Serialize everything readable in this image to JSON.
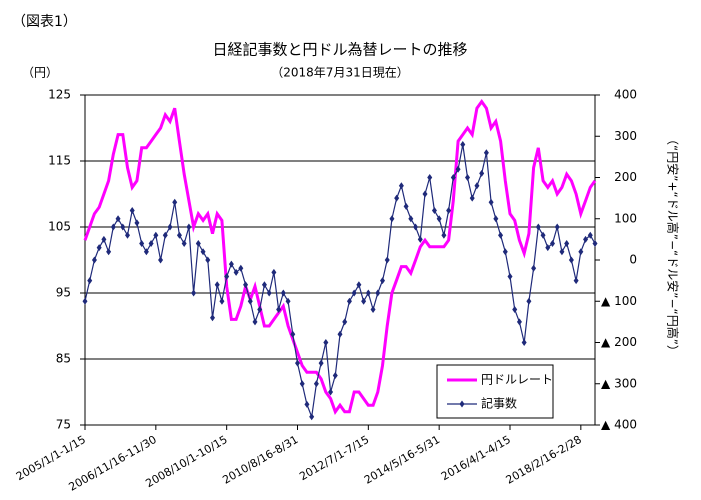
{
  "label": "（図表1）",
  "chart_data": {
    "type": "line",
    "title": "日経記事数と円ドル為替レートの推移",
    "subtitle": "（2018年7月31日現在）",
    "y_label": "（円）",
    "y2_label": "（“円安”+“ドル高”−“ドル安”−“円高”）",
    "categories": [
      "2005/1/1-1/15",
      null,
      null,
      null,
      null,
      null,
      null,
      null,
      null,
      null,
      null,
      null,
      null,
      null,
      null,
      "2006/11/16-11/30",
      null,
      null,
      null,
      null,
      null,
      null,
      null,
      null,
      null,
      null,
      null,
      null,
      null,
      null,
      "2008/10/1-10/15",
      null,
      null,
      null,
      null,
      null,
      null,
      null,
      null,
      null,
      null,
      null,
      null,
      null,
      null,
      "2010/8/16-8/31",
      null,
      null,
      null,
      null,
      null,
      null,
      null,
      null,
      null,
      null,
      null,
      null,
      null,
      null,
      "2012/7/1-7/15",
      null,
      null,
      null,
      null,
      null,
      null,
      null,
      null,
      null,
      null,
      null,
      null,
      null,
      null,
      "2014/5/16-5/31",
      null,
      null,
      null,
      null,
      null,
      null,
      null,
      null,
      null,
      null,
      null,
      null,
      null,
      null,
      "2016/4/1-4/15",
      null,
      null,
      null,
      null,
      null,
      null,
      null,
      null,
      null,
      null,
      null,
      null,
      null,
      null,
      "2018/2/16-2/28",
      null,
      null,
      null
    ],
    "series": [
      {
        "name": "円ドルレート",
        "color": "#ff00ff",
        "axis": "y",
        "values": [
          103,
          105,
          107,
          108,
          110,
          112,
          116,
          119,
          119,
          114,
          111,
          112,
          117,
          117,
          118,
          119,
          120,
          122,
          121,
          123,
          118,
          113,
          109,
          105,
          107,
          106,
          107,
          104,
          107,
          106,
          96,
          91,
          91,
          93,
          96,
          94,
          96,
          93,
          90,
          90,
          91,
          92,
          93,
          90,
          88,
          86,
          84,
          83,
          83,
          83,
          82,
          80,
          79,
          77,
          78,
          77,
          77,
          80,
          80,
          79,
          78,
          78,
          80,
          84,
          90,
          95,
          97,
          99,
          99,
          98,
          100,
          102,
          103,
          102,
          102,
          102,
          102,
          103,
          109,
          118,
          119,
          120,
          119,
          123,
          124,
          123,
          120,
          121,
          118,
          112,
          107,
          106,
          103,
          101,
          104,
          114,
          117,
          112,
          111,
          112,
          110,
          111,
          113,
          112,
          110,
          107,
          109,
          111,
          112
        ]
      },
      {
        "name": "記事数",
        "color": "#1f2a7a",
        "axis": "y2",
        "values": [
          -100,
          -50,
          0,
          30,
          50,
          20,
          80,
          100,
          80,
          60,
          120,
          90,
          40,
          20,
          40,
          60,
          0,
          60,
          80,
          140,
          60,
          40,
          80,
          -80,
          40,
          20,
          0,
          -140,
          -60,
          -100,
          -40,
          -10,
          -30,
          -20,
          -60,
          -100,
          -150,
          -120,
          -60,
          -80,
          -30,
          -120,
          -80,
          -100,
          -180,
          -250,
          -300,
          -350,
          -380,
          -300,
          -250,
          -200,
          -320,
          -280,
          -180,
          -150,
          -100,
          -80,
          -60,
          -100,
          -80,
          -120,
          -80,
          -50,
          0,
          100,
          150,
          180,
          130,
          100,
          80,
          50,
          160,
          200,
          120,
          100,
          60,
          120,
          200,
          220,
          280,
          200,
          150,
          180,
          210,
          260,
          140,
          100,
          60,
          20,
          -40,
          -120,
          -150,
          -200,
          -100,
          -20,
          80,
          60,
          30,
          40,
          80,
          20,
          40,
          0,
          -50,
          20,
          50,
          60,
          40
        ]
      }
    ],
    "ylim": [
      75,
      125
    ],
    "yticks": [
      75,
      85,
      95,
      105,
      115,
      125
    ],
    "y2lim": [
      -400,
      400
    ],
    "y2ticks": [
      400,
      300,
      200,
      100,
      0,
      {
        "value": -100,
        "label": "▲ 100"
      },
      {
        "value": -200,
        "label": "▲ 200"
      },
      {
        "value": -300,
        "label": "▲ 300"
      },
      {
        "value": -400,
        "label": "▲ 400"
      }
    ],
    "grid": true
  }
}
